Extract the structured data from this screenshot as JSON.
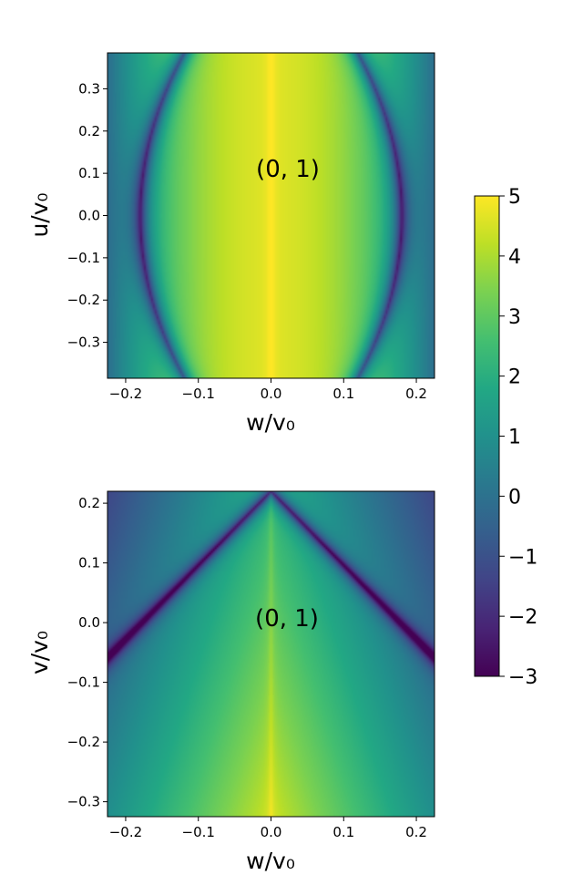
{
  "chart_data": [
    {
      "type": "heatmap",
      "panel": "top",
      "annotation": "(0, 1)",
      "xlabel": "w/v₀",
      "ylabel": "u/v₀",
      "xlim": [
        -0.225,
        0.225
      ],
      "ylim": [
        -0.385,
        0.385
      ],
      "xticks": [
        -0.2,
        -0.1,
        0.0,
        0.1,
        0.2
      ],
      "xtick_labels": [
        "−0.2",
        "−0.1",
        "0.0",
        "0.1",
        "0.2"
      ],
      "yticks": [
        0.3,
        0.2,
        0.1,
        0.0,
        -0.1,
        -0.2,
        -0.3
      ],
      "ytick_labels": [
        "0.3",
        "0.2",
        "0.1",
        "0.0",
        "−0.1",
        "−0.2",
        "−0.3"
      ],
      "colormap": "viridis",
      "feature": "ridge at w = 0 (max value); dark curved minima near w = ±0.18 at u = 0 curving to w = ±0.12 at u = ±0.385"
    },
    {
      "type": "heatmap",
      "panel": "bottom",
      "annotation": "(0, 1)",
      "xlabel": "w/v₀",
      "ylabel": "v/v₀",
      "xlim": [
        -0.225,
        0.225
      ],
      "ylim": [
        -0.325,
        0.22
      ],
      "xticks": [
        -0.2,
        -0.1,
        0.0,
        0.1,
        0.2
      ],
      "xtick_labels": [
        "−0.2",
        "−0.1",
        "0.0",
        "0.1",
        "0.2"
      ],
      "yticks": [
        0.2,
        0.1,
        0.0,
        -0.1,
        -0.2,
        -0.3
      ],
      "ytick_labels": [
        "0.2",
        "0.1",
        "0.0",
        "−0.1",
        "−0.2",
        "−0.3"
      ],
      "colormap": "viridis",
      "feature": "ridge at w = 0; dark V-shaped minima lines from (0, 0.22) down to (±0.225, −0.06)"
    },
    {
      "type": "colorbar",
      "colormap": "viridis",
      "vmin": -3,
      "vmax": 5,
      "ticks": [
        5,
        4,
        3,
        2,
        1,
        0,
        -1,
        -2,
        -3
      ],
      "tick_labels": [
        "5",
        "4",
        "3",
        "2",
        "1",
        "0",
        "−1",
        "−2",
        "−3"
      ]
    }
  ]
}
